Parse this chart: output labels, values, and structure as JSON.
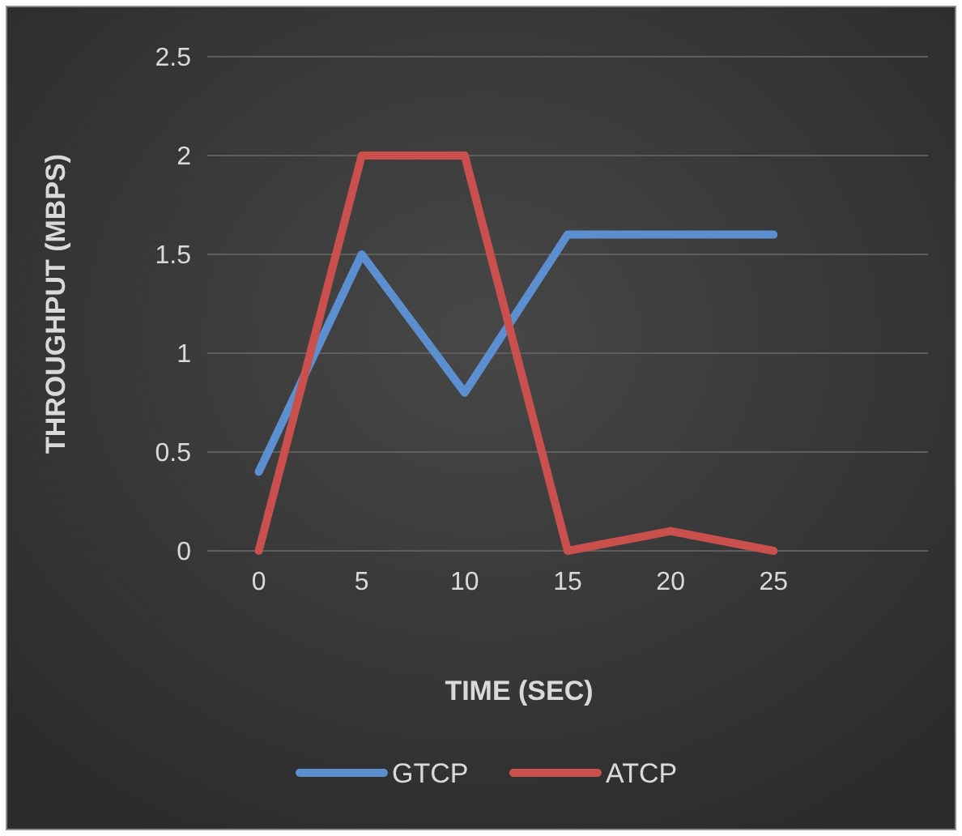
{
  "chart_data": {
    "type": "line",
    "xlabel": "TIME (SEC)",
    "ylabel": "THROUGHPUT (MBPS)",
    "categories": [
      "0",
      "5",
      "10",
      "15",
      "20",
      "25",
      null
    ],
    "series": [
      {
        "name": "GTCP",
        "color": "#5b8fd0",
        "values": [
          0.4,
          1.5,
          0.8,
          1.6,
          1.6,
          1.6,
          null
        ]
      },
      {
        "name": "ATCP",
        "color": "#c9504d",
        "values": [
          0,
          2,
          2,
          0,
          0.1,
          0,
          null
        ]
      }
    ],
    "ylim": [
      0,
      2.5
    ],
    "yticks": [
      0,
      0.5,
      1,
      1.5,
      2,
      2.5
    ],
    "grid": "y",
    "legend": "bottom",
    "marker": "none",
    "line_style": "solid"
  }
}
